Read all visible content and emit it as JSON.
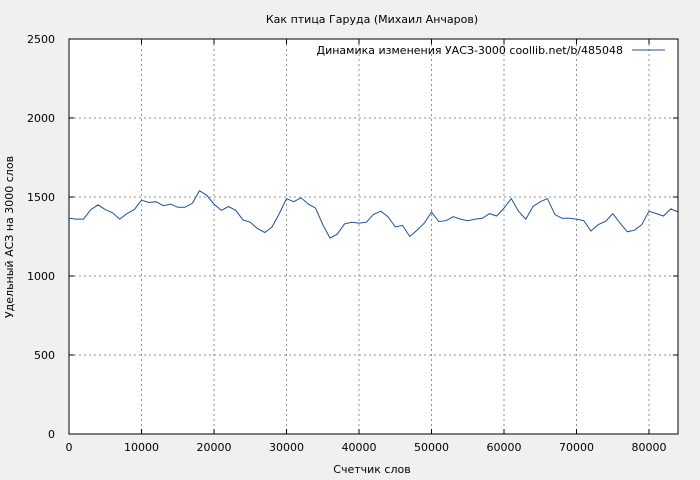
{
  "chart_data": {
    "type": "line",
    "title": "Как птица Гаруда (Михаил Анчаров)",
    "xlabel": "Счетчик слов",
    "ylabel": "Удельный АСЗ на 3000 слов",
    "xlim": [
      0,
      84000
    ],
    "ylim": [
      0,
      2500
    ],
    "x_ticks": [
      0,
      10000,
      20000,
      30000,
      40000,
      50000,
      60000,
      70000,
      80000
    ],
    "y_ticks": [
      0,
      500,
      1000,
      1500,
      2000,
      2500
    ],
    "grid": true,
    "legend_position": "top-right",
    "series": [
      {
        "name": "Динамика изменения УАСЗ-3000  coollib.net/b/485048",
        "color": "#1f4f9e",
        "x": [
          0,
          1000,
          2000,
          3000,
          4000,
          5000,
          6000,
          7000,
          8000,
          9000,
          10000,
          11000,
          12000,
          13000,
          14000,
          15000,
          16000,
          17000,
          18000,
          19000,
          20000,
          21000,
          22000,
          23000,
          24000,
          25000,
          26000,
          27000,
          28000,
          29000,
          30000,
          31000,
          32000,
          33000,
          34000,
          35000,
          36000,
          37000,
          38000,
          39000,
          40000,
          41000,
          42000,
          43000,
          44000,
          45000,
          46000,
          47000,
          48000,
          49000,
          50000,
          51000,
          52000,
          53000,
          54000,
          55000,
          56000,
          57000,
          58000,
          59000,
          60000,
          61000,
          62000,
          63000,
          64000,
          65000,
          66000,
          67000,
          68000,
          69000,
          70000,
          71000,
          72000,
          73000,
          74000,
          75000,
          76000,
          77000,
          78000,
          79000,
          80000,
          81000,
          82000,
          83000,
          84000
        ],
        "y": [
          1365,
          1360,
          1360,
          1420,
          1450,
          1420,
          1400,
          1360,
          1395,
          1420,
          1480,
          1465,
          1470,
          1445,
          1455,
          1435,
          1435,
          1460,
          1540,
          1510,
          1455,
          1415,
          1440,
          1415,
          1355,
          1340,
          1300,
          1275,
          1310,
          1395,
          1490,
          1470,
          1495,
          1455,
          1430,
          1325,
          1240,
          1265,
          1330,
          1340,
          1335,
          1340,
          1390,
          1410,
          1375,
          1310,
          1320,
          1250,
          1290,
          1335,
          1405,
          1345,
          1350,
          1375,
          1360,
          1350,
          1360,
          1365,
          1395,
          1380,
          1430,
          1490,
          1410,
          1360,
          1440,
          1470,
          1490,
          1390,
          1365,
          1365,
          1360,
          1350,
          1285,
          1325,
          1345,
          1395,
          1335,
          1280,
          1290,
          1325,
          1410,
          1395,
          1380,
          1425,
          1405
        ]
      }
    ]
  }
}
